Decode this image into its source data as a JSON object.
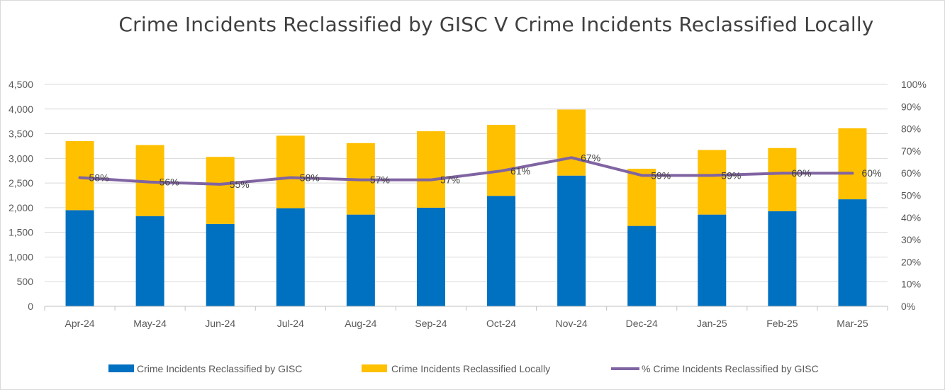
{
  "chart_data": {
    "type": "bar",
    "stacked": true,
    "title": "Crime Incidents Reclassified by GISC V Crime Incidents Reclassified Locally",
    "categories": [
      "Apr-24",
      "May-24",
      "Jun-24",
      "Jul-24",
      "Aug-24",
      "Sep-24",
      "Oct-24",
      "Nov-24",
      "Dec-24",
      "Jan-25",
      "Feb-25",
      "Mar-25"
    ],
    "series": [
      {
        "name": "Crime Incidents Reclassified by GISC",
        "type": "bar",
        "axis": "left",
        "color": "#0070C0",
        "values": [
          1950,
          1830,
          1670,
          1990,
          1860,
          2000,
          2240,
          2650,
          1630,
          1860,
          1930,
          2170
        ]
      },
      {
        "name": "Crime Incidents Reclassified Locally",
        "type": "bar",
        "axis": "left",
        "color": "#FFC000",
        "values": [
          1400,
          1440,
          1360,
          1470,
          1450,
          1550,
          1440,
          1340,
          1160,
          1310,
          1280,
          1440
        ]
      },
      {
        "name": "% Crime Incidents Reclassified by GISC",
        "type": "line",
        "axis": "right",
        "color": "#8064A2",
        "values": [
          58,
          56,
          55,
          58,
          57,
          57,
          61,
          67,
          59,
          59,
          60,
          60
        ],
        "labels": [
          "58%",
          "56%",
          "55%",
          "58%",
          "57%",
          "57%",
          "61%",
          "67%",
          "59%",
          "59%",
          "60%",
          "60%"
        ]
      }
    ],
    "y_left": {
      "min": 0,
      "max": 4500,
      "step": 500,
      "tick_labels": [
        "0",
        "500",
        "1,000",
        "1,500",
        "2,000",
        "2,500",
        "3,000",
        "3,500",
        "4,000",
        "4,500"
      ]
    },
    "y_right": {
      "min": 0,
      "max": 100,
      "step": 10,
      "tick_labels": [
        "0%",
        "10%",
        "20%",
        "30%",
        "40%",
        "50%",
        "60%",
        "70%",
        "80%",
        "90%",
        "100%"
      ]
    },
    "grid": true,
    "legend_position": "bottom"
  }
}
